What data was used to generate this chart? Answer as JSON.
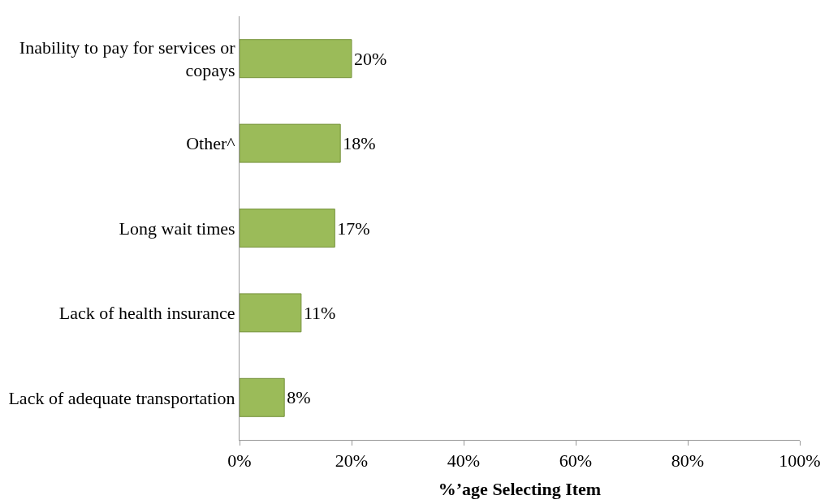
{
  "chart_data": {
    "type": "bar",
    "orientation": "horizontal",
    "categories": [
      "Inability to pay for services or copays",
      "Other^",
      "Long wait times",
      "Lack of health insurance",
      "Lack of adequate transportation"
    ],
    "values": [
      20,
      18,
      17,
      11,
      8
    ],
    "value_labels": [
      "20%",
      "18%",
      "17%",
      "11%",
      "8%"
    ],
    "color": "#9bbb59",
    "xlabel": "%’age Selecting Item",
    "xlim": [
      0,
      100
    ],
    "xticks": [
      {
        "value": 0,
        "label": "0%"
      },
      {
        "value": 20,
        "label": "20%"
      },
      {
        "value": 40,
        "label": "40%"
      },
      {
        "value": 60,
        "label": "60%"
      },
      {
        "value": 80,
        "label": "80%"
      },
      {
        "value": 100,
        "label": "100%"
      }
    ],
    "legend": false
  }
}
